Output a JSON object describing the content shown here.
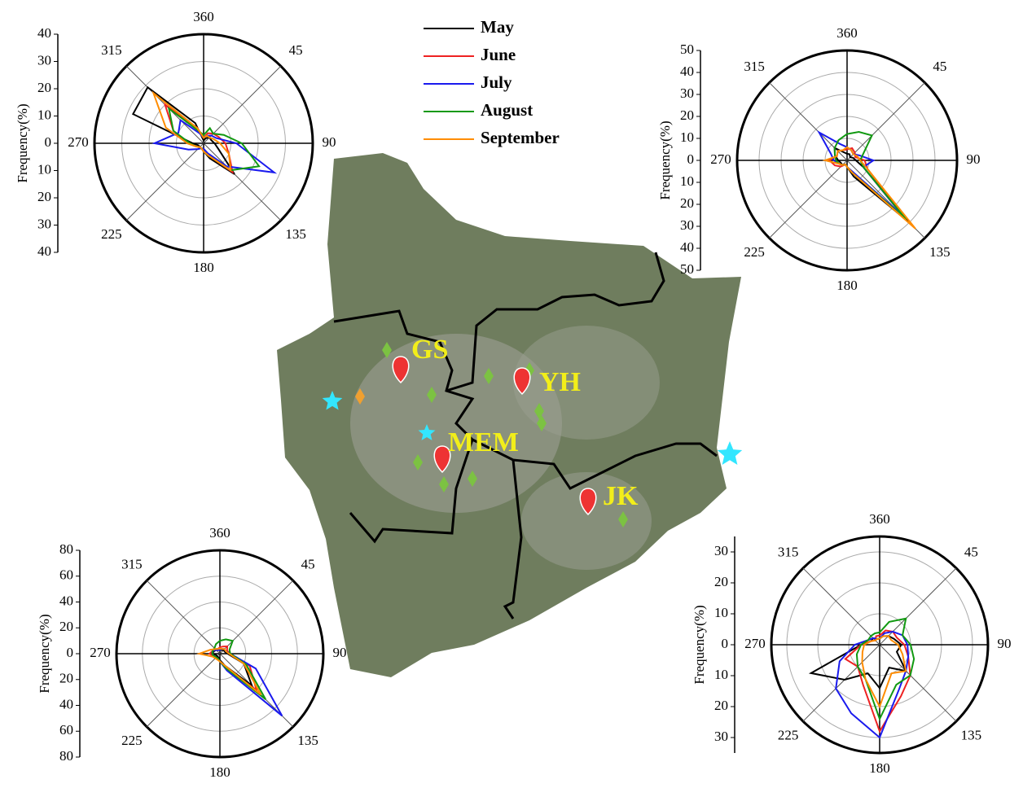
{
  "chart_data": [
    {
      "type": "polar",
      "ylabel": "Frequency(%)",
      "x": [
        0,
        22.5,
        45,
        67.5,
        90,
        112.5,
        135,
        157.5,
        180,
        202.5,
        225,
        247.5,
        270,
        292.5,
        315,
        337.5
      ],
      "xticks": [
        {
          "value": 0,
          "label": "360"
        },
        45,
        90,
        135,
        180,
        225,
        270,
        315
      ],
      "ylim": [
        0,
        40
      ],
      "yticks": [
        0,
        10,
        20,
        30,
        40
      ],
      "grid": true,
      "series": [
        {
          "name": "May",
          "color": "#000000",
          "values": [
            1,
            2,
            3,
            3,
            4,
            6,
            16,
            6,
            3,
            2,
            2,
            2,
            4,
            28,
            29,
            8
          ]
        },
        {
          "name": "June",
          "color": "#ee2222",
          "values": [
            2,
            4,
            5,
            6,
            8,
            10,
            15,
            5,
            3,
            2,
            2,
            3,
            6,
            12,
            20,
            6
          ]
        },
        {
          "name": "July",
          "color": "#1a1aee",
          "values": [
            2,
            3,
            4,
            5,
            12,
            28,
            12,
            4,
            2,
            2,
            3,
            6,
            18,
            10,
            12,
            4
          ]
        },
        {
          "name": "August",
          "color": "#119911",
          "values": [
            3,
            6,
            5,
            8,
            14,
            22,
            14,
            5,
            3,
            2,
            2,
            3,
            5,
            12,
            18,
            5
          ]
        },
        {
          "name": "September",
          "color": "#ff8c00",
          "values": [
            2,
            3,
            3,
            4,
            6,
            10,
            14,
            5,
            3,
            2,
            2,
            3,
            6,
            15,
            26,
            6
          ]
        }
      ]
    },
    {
      "type": "polar",
      "ylabel": "Frequency(%)",
      "x": [
        0,
        22.5,
        45,
        67.5,
        90,
        112.5,
        135,
        157.5,
        180,
        202.5,
        225,
        247.5,
        270,
        292.5,
        315,
        337.5
      ],
      "xticks": [
        {
          "value": 0,
          "label": "360"
        },
        45,
        90,
        135,
        180,
        225,
        270,
        315
      ],
      "ylim": [
        0,
        50
      ],
      "yticks": [
        0,
        10,
        20,
        30,
        40,
        50
      ],
      "grid": true,
      "series": [
        {
          "color": "#000000",
          "values": [
            3,
            3,
            2,
            3,
            4,
            8,
            40,
            8,
            3,
            2,
            3,
            3,
            4,
            6,
            8,
            4
          ]
        },
        {
          "color": "#ee2222",
          "values": [
            5,
            6,
            5,
            4,
            8,
            10,
            38,
            6,
            3,
            2,
            4,
            6,
            8,
            5,
            6,
            5
          ]
        },
        {
          "color": "#1a1aee",
          "values": [
            6,
            5,
            4,
            6,
            12,
            8,
            36,
            5,
            3,
            2,
            3,
            4,
            6,
            8,
            18,
            8
          ]
        },
        {
          "color": "#119911",
          "values": [
            12,
            14,
            16,
            8,
            6,
            8,
            38,
            6,
            3,
            2,
            3,
            4,
            5,
            6,
            8,
            10
          ]
        },
        {
          "color": "#ff8c00",
          "values": [
            6,
            5,
            4,
            5,
            6,
            10,
            44,
            6,
            3,
            2,
            3,
            4,
            10,
            5,
            6,
            5
          ]
        }
      ]
    },
    {
      "type": "polar",
      "ylabel": "Frequency(%)",
      "x": [
        0,
        22.5,
        45,
        67.5,
        90,
        112.5,
        135,
        157.5,
        180,
        202.5,
        225,
        247.5,
        270,
        292.5,
        315,
        337.5
      ],
      "xticks": [
        {
          "value": 0,
          "label": "360"
        },
        45,
        90,
        135,
        180,
        225,
        270,
        315
      ],
      "ylim": [
        0,
        80
      ],
      "yticks": [
        0,
        20,
        40,
        60,
        80
      ],
      "grid": true,
      "series": [
        {
          "color": "#000000",
          "values": [
            3,
            3,
            4,
            4,
            6,
            20,
            35,
            10,
            5,
            3,
            3,
            3,
            6,
            5,
            4,
            3
          ]
        },
        {
          "color": "#ee2222",
          "values": [
            5,
            6,
            8,
            6,
            8,
            25,
            40,
            12,
            6,
            4,
            4,
            5,
            8,
            6,
            5,
            4
          ]
        },
        {
          "color": "#1a1aee",
          "values": [
            3,
            4,
            5,
            5,
            8,
            30,
            68,
            14,
            6,
            4,
            4,
            5,
            6,
            6,
            4,
            3
          ]
        },
        {
          "color": "#119911",
          "values": [
            10,
            12,
            14,
            8,
            8,
            22,
            50,
            12,
            6,
            4,
            4,
            5,
            6,
            6,
            6,
            8
          ]
        },
        {
          "color": "#ff8c00",
          "values": [
            4,
            4,
            5,
            5,
            7,
            20,
            45,
            10,
            6,
            5,
            5,
            6,
            16,
            8,
            5,
            4
          ]
        }
      ]
    },
    {
      "type": "polar",
      "ylabel": "Frequency(%)",
      "x": [
        0,
        22.5,
        45,
        67.5,
        90,
        112.5,
        135,
        157.5,
        180,
        202.5,
        225,
        247.5,
        270,
        292.5,
        315,
        337.5
      ],
      "xticks": [
        {
          "value": 0,
          "label": "360"
        },
        45,
        90,
        135,
        180,
        225,
        270,
        315
      ],
      "ylim": [
        0,
        35
      ],
      "yticks": [
        0,
        10,
        20,
        30
      ],
      "grid": true,
      "series": [
        {
          "color": "#000000",
          "values": [
            2,
            3,
            4,
            5,
            7,
            6,
            12,
            8,
            14,
            10,
            16,
            24,
            6,
            3,
            3,
            2
          ]
        },
        {
          "color": "#ee2222",
          "values": [
            3,
            5,
            6,
            6,
            8,
            10,
            14,
            18,
            28,
            14,
            10,
            12,
            6,
            3,
            2,
            3
          ]
        },
        {
          "color": "#1a1aee",
          "values": [
            2,
            4,
            6,
            8,
            9,
            10,
            12,
            16,
            30,
            24,
            20,
            14,
            8,
            4,
            3,
            2
          ]
        },
        {
          "color": "#119911",
          "values": [
            4,
            8,
            12,
            8,
            10,
            12,
            14,
            14,
            24,
            12,
            10,
            8,
            6,
            4,
            4,
            4
          ]
        },
        {
          "color": "#ff8c00",
          "values": [
            2,
            3,
            4,
            4,
            6,
            8,
            12,
            10,
            20,
            12,
            8,
            6,
            5,
            3,
            2,
            2
          ]
        }
      ]
    }
  ],
  "map": {
    "sites": [
      "GS",
      "YH",
      "MEM",
      "JK"
    ]
  }
}
